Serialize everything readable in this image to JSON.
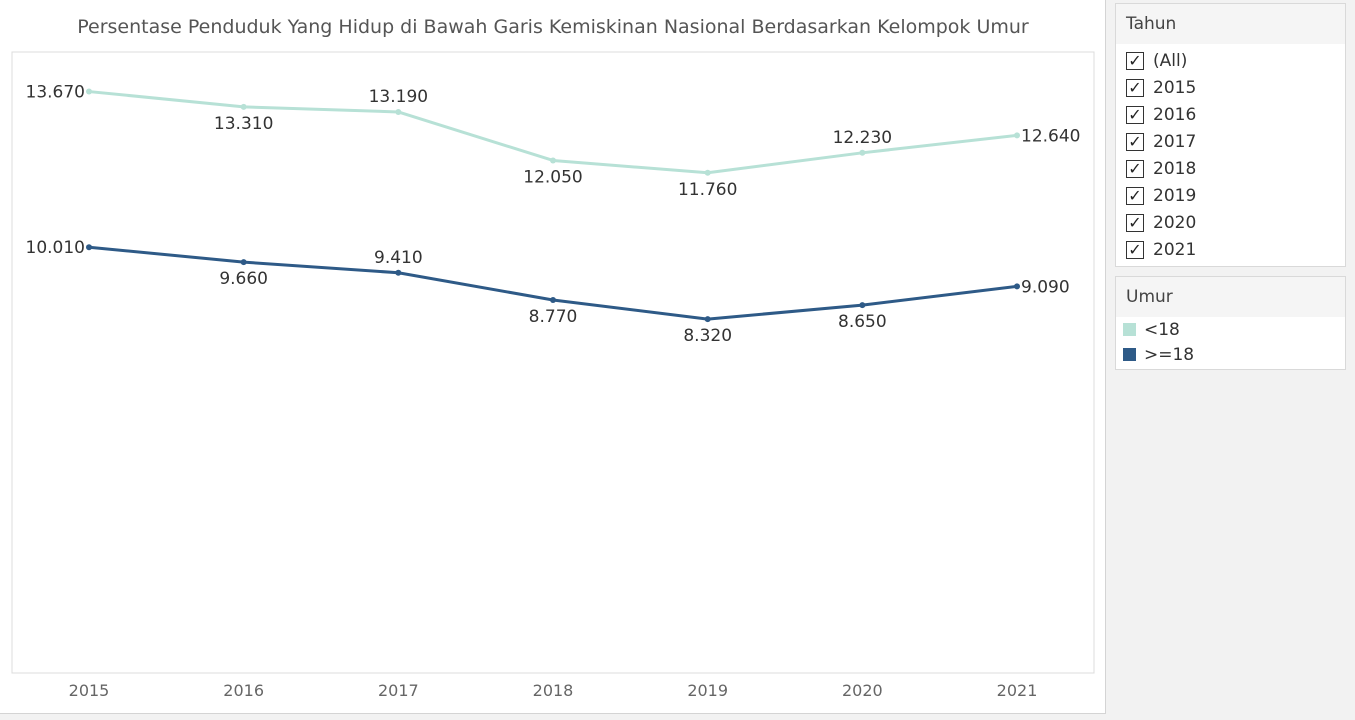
{
  "chart_data": {
    "type": "line",
    "title": "Persentase Penduduk Yang Hidup di Bawah Garis Kemiskinan Nasional Berdasarkan Kelompok Umur",
    "xlabel": "",
    "ylabel": "",
    "categories": [
      "2015",
      "2016",
      "2017",
      "2018",
      "2019",
      "2020",
      "2021"
    ],
    "ylim": [
      0,
      14.6
    ],
    "grid": false,
    "legend_position": "right",
    "series": [
      {
        "name": "<18",
        "color": "#b7e1d6",
        "values": [
          13.67,
          13.31,
          13.19,
          12.05,
          11.76,
          12.23,
          12.64
        ],
        "labels": [
          "13.670",
          "13.310",
          "13.190",
          "12.050",
          "11.760",
          "12.230",
          "12.640"
        ]
      },
      {
        "name": ">=18",
        "color": "#2e5a87",
        "values": [
          10.01,
          9.66,
          9.41,
          8.77,
          8.32,
          8.65,
          9.09
        ],
        "labels": [
          "10.010",
          "9.660",
          "9.410",
          "8.770",
          "8.320",
          "8.650",
          "9.090"
        ]
      }
    ]
  },
  "filter": {
    "title": "Tahun",
    "check_glyph": "✓",
    "items": [
      "(All)",
      "2015",
      "2016",
      "2017",
      "2018",
      "2019",
      "2020",
      "2021"
    ]
  },
  "legend": {
    "title": "Umur",
    "items": [
      {
        "label": "<18",
        "color": "#b7e1d6"
      },
      {
        "label": ">=18",
        "color": "#2e5a87"
      }
    ]
  }
}
